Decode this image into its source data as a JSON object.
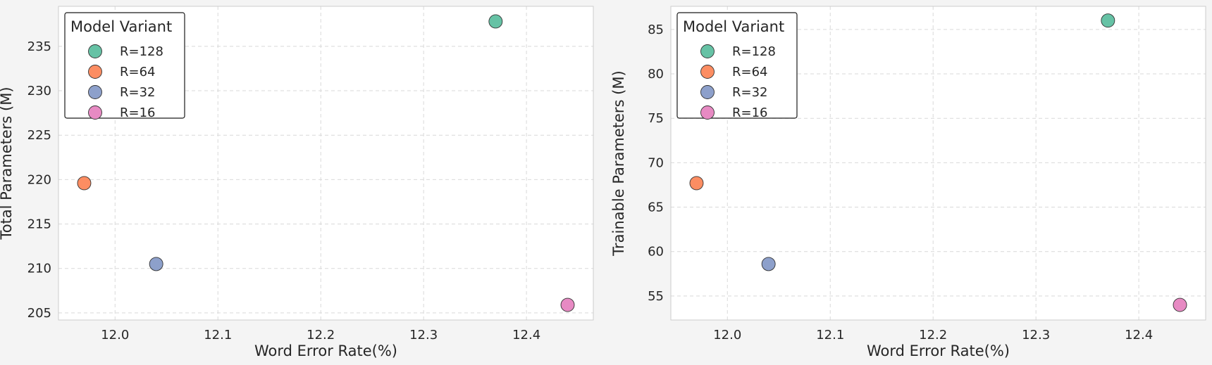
{
  "colors": {
    "background": "#f4f4f4",
    "plot_background": "#ffffff",
    "grid": "#d9d9d9",
    "R=128": "#66c2a5",
    "R=64": "#fc8d62",
    "R=32": "#8da0cb",
    "R=16": "#e78ac3"
  },
  "chart_data": [
    {
      "type": "scatter",
      "xlabel": "Word Error Rate(%)",
      "ylabel": "Total Parameters (M)",
      "xlim": [
        11.945,
        12.465
      ],
      "ylim": [
        204.2,
        239.5
      ],
      "xticks": [
        12.0,
        12.1,
        12.2,
        12.3,
        12.4
      ],
      "yticks": [
        205,
        210,
        215,
        220,
        225,
        230,
        235
      ],
      "grid": true,
      "legend": {
        "title": "Model Variant",
        "placement": "top-left"
      },
      "series": [
        {
          "name": "R=128",
          "x": [
            12.37
          ],
          "y": [
            237.8
          ]
        },
        {
          "name": "R=64",
          "x": [
            11.97
          ],
          "y": [
            219.6
          ]
        },
        {
          "name": "R=32",
          "x": [
            12.04
          ],
          "y": [
            210.5
          ]
        },
        {
          "name": "R=16",
          "x": [
            12.44
          ],
          "y": [
            205.9
          ]
        }
      ]
    },
    {
      "type": "scatter",
      "xlabel": "Word Error Rate(%)",
      "ylabel": "Trainable Parameters (M)",
      "xlim": [
        11.945,
        12.465
      ],
      "ylim": [
        52.3,
        87.6
      ],
      "xticks": [
        12.0,
        12.1,
        12.2,
        12.3,
        12.4
      ],
      "yticks": [
        55,
        60,
        65,
        70,
        75,
        80,
        85
      ],
      "grid": true,
      "legend": {
        "title": "Model Variant",
        "placement": "top-left"
      },
      "series": [
        {
          "name": "R=128",
          "x": [
            12.37
          ],
          "y": [
            86.0
          ]
        },
        {
          "name": "R=64",
          "x": [
            11.97
          ],
          "y": [
            67.7
          ]
        },
        {
          "name": "R=32",
          "x": [
            12.04
          ],
          "y": [
            58.6
          ]
        },
        {
          "name": "R=16",
          "x": [
            12.44
          ],
          "y": [
            54.0
          ]
        }
      ]
    }
  ]
}
